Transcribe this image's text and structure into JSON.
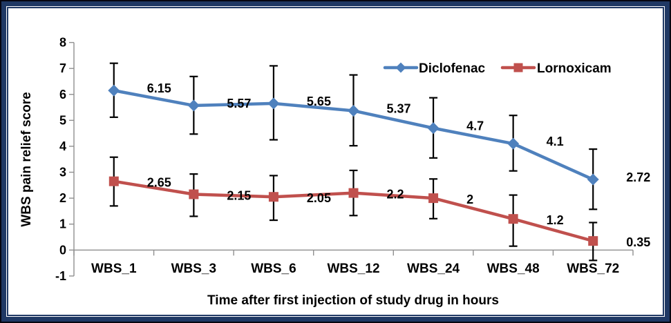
{
  "frame": {
    "outer_color": "#05050f",
    "band_color": "#1f3864",
    "thin_line_color": "#1f3864",
    "background": "#ffffff"
  },
  "chart_data": {
    "type": "line",
    "title": "",
    "xlabel": "Time after first injection of study drug in hours",
    "ylabel": "WBS pain relief score",
    "categories": [
      "WBS_1",
      "WBS_3",
      "WBS_6",
      "WBS_12",
      "WBS_24",
      "WBS_48",
      "WBS_72"
    ],
    "ylim": [
      -1,
      8
    ],
    "ytick_step": 1,
    "ytick_labels": [
      "8",
      "7",
      "6",
      "5",
      "4",
      "3",
      "2",
      "1",
      "0",
      "-1"
    ],
    "grid": false,
    "axis_color": "#8e8e8e",
    "error_bar_color": "#000000",
    "legend": {
      "position": "top-inside",
      "entries": [
        "Diclofenac",
        "Lornoxicam"
      ]
    },
    "series": [
      {
        "name": "Diclofenac",
        "color": "#4F81BD",
        "marker": "diamond",
        "values": [
          6.15,
          5.57,
          5.65,
          5.37,
          4.7,
          4.1,
          2.72
        ],
        "labels": [
          "6.15",
          "5.57",
          "5.65",
          "5.37",
          "4.7",
          "4.1",
          "2.72"
        ],
        "error_plus": [
          1.05,
          1.12,
          1.45,
          1.38,
          1.17,
          1.09,
          1.17
        ],
        "error_minus": [
          1.03,
          1.1,
          1.4,
          1.35,
          1.15,
          1.05,
          1.15
        ]
      },
      {
        "name": "Lornoxicam",
        "color": "#C0504D",
        "marker": "square",
        "values": [
          2.65,
          2.15,
          2.05,
          2.2,
          2,
          1.2,
          0.35
        ],
        "labels": [
          "2.65",
          "2.15",
          "2.05",
          "2.2",
          "2",
          "1.2",
          "0.35"
        ],
        "error_plus": [
          0.93,
          0.78,
          0.82,
          0.87,
          0.74,
          0.92,
          0.71
        ],
        "error_minus": [
          0.95,
          0.85,
          0.9,
          0.87,
          0.79,
          1.05,
          0.75
        ]
      }
    ]
  }
}
